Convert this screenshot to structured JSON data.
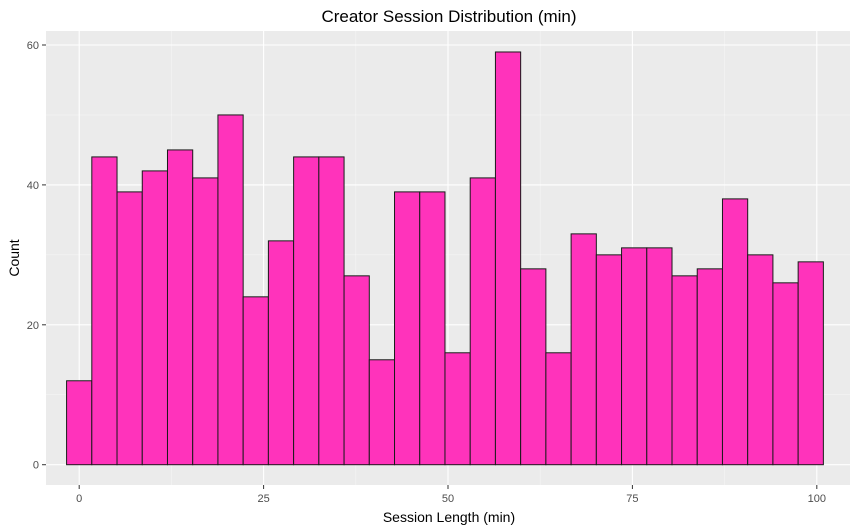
{
  "chart_data": {
    "type": "bar",
    "title": "Creator Session Distribution (min)",
    "xlabel": "Session Length (min)",
    "ylabel": "Count",
    "xlim": [
      -4.5,
      104.5
    ],
    "ylim": [
      -2.9,
      62
    ],
    "x_ticks": [
      0,
      25,
      50,
      75,
      100
    ],
    "y_ticks": [
      0,
      20,
      40,
      60
    ],
    "bin_width": 3.42,
    "bins": [
      {
        "start": -1.71,
        "end": 1.71,
        "count": 12
      },
      {
        "start": 1.71,
        "end": 5.13,
        "count": 44
      },
      {
        "start": 5.13,
        "end": 8.55,
        "count": 39
      },
      {
        "start": 8.55,
        "end": 11.97,
        "count": 42
      },
      {
        "start": 11.97,
        "end": 15.39,
        "count": 45
      },
      {
        "start": 15.39,
        "end": 18.81,
        "count": 41
      },
      {
        "start": 18.81,
        "end": 22.23,
        "count": 50
      },
      {
        "start": 22.23,
        "end": 25.65,
        "count": 24
      },
      {
        "start": 25.65,
        "end": 29.07,
        "count": 32
      },
      {
        "start": 29.07,
        "end": 32.49,
        "count": 44
      },
      {
        "start": 32.49,
        "end": 35.91,
        "count": 44
      },
      {
        "start": 35.91,
        "end": 39.33,
        "count": 27
      },
      {
        "start": 39.33,
        "end": 42.75,
        "count": 15
      },
      {
        "start": 42.75,
        "end": 46.17,
        "count": 39
      },
      {
        "start": 46.17,
        "end": 49.59,
        "count": 39
      },
      {
        "start": 49.59,
        "end": 53.01,
        "count": 16
      },
      {
        "start": 53.01,
        "end": 56.43,
        "count": 41
      },
      {
        "start": 56.43,
        "end": 59.85,
        "count": 59
      },
      {
        "start": 59.85,
        "end": 63.27,
        "count": 28
      },
      {
        "start": 63.27,
        "end": 66.69,
        "count": 16
      },
      {
        "start": 66.69,
        "end": 70.11,
        "count": 33
      },
      {
        "start": 70.11,
        "end": 73.53,
        "count": 30
      },
      {
        "start": 73.53,
        "end": 76.95,
        "count": 31
      },
      {
        "start": 76.95,
        "end": 80.37,
        "count": 31
      },
      {
        "start": 80.37,
        "end": 83.79,
        "count": 27
      },
      {
        "start": 83.79,
        "end": 87.21,
        "count": 28
      },
      {
        "start": 87.21,
        "end": 90.63,
        "count": 38
      },
      {
        "start": 90.63,
        "end": 94.05,
        "count": 30
      },
      {
        "start": 94.05,
        "end": 97.47,
        "count": 26
      },
      {
        "start": 97.47,
        "end": 100.89,
        "count": 29
      }
    ],
    "grid": true,
    "legend": "none",
    "colors": {
      "bar_fill": "#ff33bb",
      "bar_outline": "#1a1a1a",
      "panel_background": "#ebebeb",
      "grid": "#ffffff"
    }
  }
}
